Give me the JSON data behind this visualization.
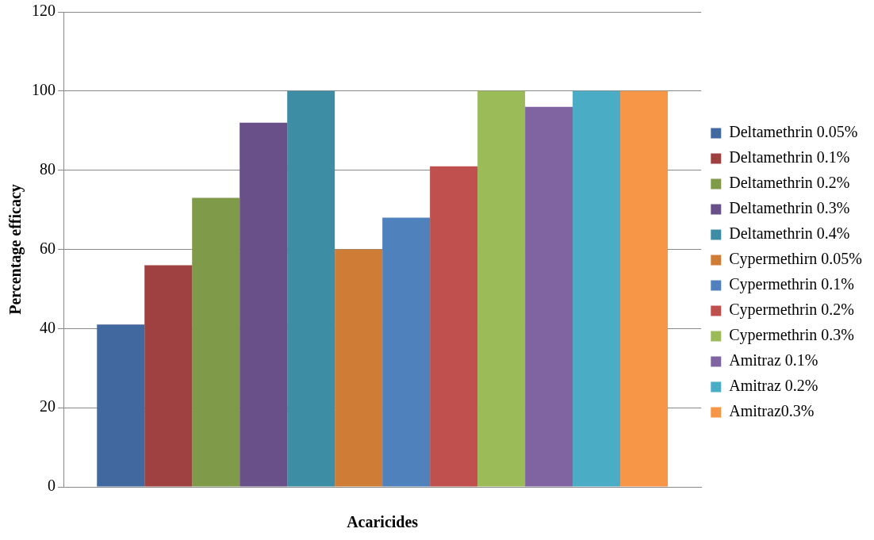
{
  "chart_data": {
    "type": "bar",
    "xlabel": "Acaricides",
    "ylabel": "Percentage efficacy",
    "categories": [
      null
    ],
    "series": [
      {
        "name": "Deltamethrin 0.05%",
        "color": "#4169a0",
        "values": [
          41
        ]
      },
      {
        "name": "Deltamethrin 0.1%",
        "color": "#9e4140",
        "values": [
          56
        ]
      },
      {
        "name": "Deltamethrin 0.2%",
        "color": "#7f9a48",
        "values": [
          73
        ]
      },
      {
        "name": "Deltamethrin 0.3%",
        "color": "#6a5088",
        "values": [
          92
        ]
      },
      {
        "name": "Deltamethrin 0.4%",
        "color": "#3d8ea4",
        "values": [
          100
        ]
      },
      {
        "name": "Cypermethirn 0.05%",
        "color": "#cf7c37",
        "values": [
          60
        ]
      },
      {
        "name": "Cypermethrin 0.1%",
        "color": "#4f81bd",
        "values": [
          68
        ]
      },
      {
        "name": "Cypermethrin 0.2%",
        "color": "#c0504d",
        "values": [
          81
        ]
      },
      {
        "name": "Cypermethrin 0.3%",
        "color": "#9bbb59",
        "values": [
          100
        ]
      },
      {
        "name": "Amitraz 0.1%",
        "color": "#8064a2",
        "values": [
          96
        ]
      },
      {
        "name": "Amitraz 0.2%",
        "color": "#4bacc6",
        "values": [
          100
        ]
      },
      {
        "name": "Amitraz0.3%",
        "color": "#f79646",
        "values": [
          100
        ]
      }
    ],
    "ylim": [
      0,
      120
    ],
    "yticks": [
      0,
      20,
      40,
      60,
      80,
      100,
      120
    ],
    "grid": "y",
    "legend": "right"
  }
}
